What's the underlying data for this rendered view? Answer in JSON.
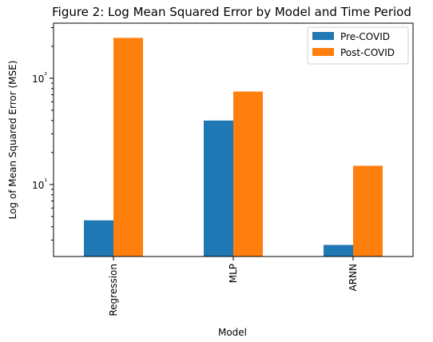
{
  "chart_data": {
    "type": "bar",
    "title": "Figure 2: Log Mean Squared Error by Model and Time Period",
    "xlabel": "Model",
    "ylabel": "Log of Mean Squared Error (MSE)",
    "yscale": "log",
    "ylim": [
      2.1,
      330
    ],
    "yticks": [
      {
        "value": 10,
        "label": "10¹"
      },
      {
        "value": 100,
        "label": "10²"
      }
    ],
    "categories": [
      "Regression",
      "MLP",
      "ARNN"
    ],
    "series": [
      {
        "name": "Pre-COVID",
        "color": "#1f77b4",
        "values": [
          4.6,
          40,
          2.7
        ]
      },
      {
        "name": "Post-COVID",
        "color": "#ff7f0e",
        "values": [
          240,
          75,
          15
        ]
      }
    ],
    "legend_position": "top-right",
    "grid": false
  }
}
